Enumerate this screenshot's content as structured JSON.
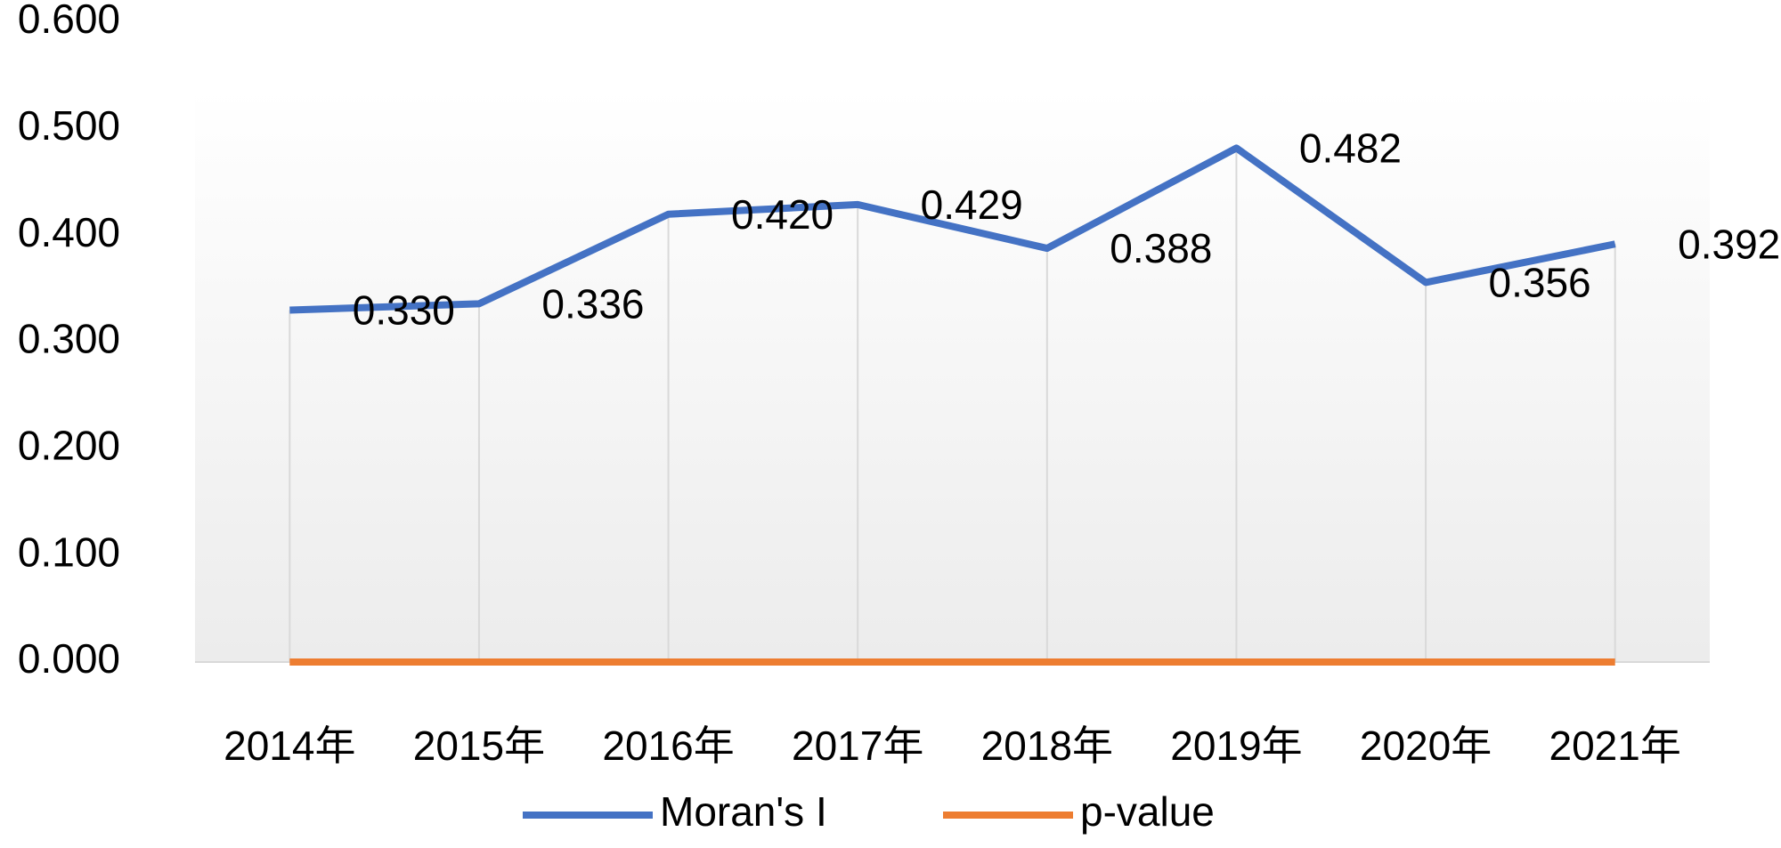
{
  "chart_data": {
    "type": "line",
    "categories": [
      "2014年",
      "2015年",
      "2016年",
      "2017年",
      "2018年",
      "2019年",
      "2020年",
      "2021年"
    ],
    "series": [
      {
        "name": "Moran's I",
        "color": "#4472c4",
        "values": [
          0.33,
          0.336,
          0.42,
          0.429,
          0.388,
          0.482,
          0.356,
          0.392
        ],
        "value_labels": [
          "0.330",
          "0.336",
          "0.420",
          "0.429",
          "0.388",
          "0.482",
          "0.356",
          "0.392"
        ]
      },
      {
        "name": "p-value",
        "color": "#ed7d31",
        "values": [
          0,
          0,
          0,
          0,
          0,
          0,
          0,
          0
        ]
      }
    ],
    "ylim": [
      0,
      0.6
    ],
    "yticks": [
      {
        "value": 0,
        "label": "0.000"
      },
      {
        "value": 0.1,
        "label": "0.100"
      },
      {
        "value": 0.2,
        "label": "0.200"
      },
      {
        "value": 0.3,
        "label": "0.300"
      },
      {
        "value": 0.4,
        "label": "0.400"
      },
      {
        "value": 0.5,
        "label": "0.500"
      },
      {
        "value": 0.6,
        "label": "0.600"
      }
    ],
    "legend": "bottom"
  }
}
